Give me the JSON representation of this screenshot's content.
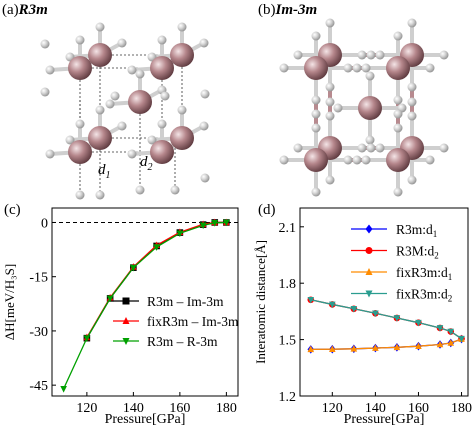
{
  "panels": {
    "a": {
      "letter": "(a)",
      "phase": "R3m",
      "d1": "d",
      "d1_sub": "1",
      "d2": "d",
      "d2_sub": "2"
    },
    "b": {
      "letter": "(b)",
      "phase": "Im-3m"
    },
    "c": {
      "letter": "(c)"
    },
    "d": {
      "letter": "(d)"
    }
  },
  "colors": {
    "sulfur": "#b5868b",
    "hydrogen": "#d4d4d4",
    "bond_s": "#b78a8f",
    "bond_h": "#cfcfcf"
  },
  "chart_data": [
    {
      "id": "c",
      "type": "line",
      "xlabel": "Pressure[GPa]",
      "ylabel": "ΔH[meV/H₃S]",
      "xlim": [
        105,
        185
      ],
      "ylim": [
        -48,
        4
      ],
      "xticks": [
        120,
        140,
        160,
        180
      ],
      "yticks": [
        0,
        -15,
        -30,
        -45
      ],
      "reference_line": 0,
      "legend_position": "bottom-right",
      "series": [
        {
          "name": "R3m – Im-3m",
          "color": "#000000",
          "marker": "square",
          "x": [
            120,
            130,
            140,
            150,
            160,
            170,
            175,
            180
          ],
          "y": [
            -32,
            -21,
            -12.5,
            -6.5,
            -2.8,
            -0.6,
            0,
            0
          ]
        },
        {
          "name": "fixR3m – Im-3m",
          "color": "#ff0000",
          "marker": "triangle-up",
          "x": [
            120,
            130,
            140,
            150,
            160,
            170,
            175,
            180
          ],
          "y": [
            -31.8,
            -20.8,
            -12.3,
            -6.3,
            -2.7,
            -0.5,
            0,
            0
          ]
        },
        {
          "name": "R3m – R-3m",
          "color": "#00a000",
          "marker": "triangle-down",
          "x": [
            110,
            120,
            130,
            140,
            150,
            160,
            170,
            175,
            180
          ],
          "y": [
            -46,
            -32,
            -21,
            -12.5,
            -6.8,
            -3,
            -0.8,
            -0.1,
            0
          ]
        }
      ]
    },
    {
      "id": "d",
      "type": "line",
      "xlabel": "Pressure[GPa]",
      "ylabel": "Interatomic distance[Å]",
      "xlim": [
        105,
        183
      ],
      "ylim": [
        1.2,
        2.2
      ],
      "xticks": [
        120,
        140,
        160,
        180
      ],
      "yticks": [
        1.2,
        1.5,
        1.8,
        2.1
      ],
      "legend_position": "top-right",
      "series": [
        {
          "name": "R3m:d",
          "sub": "1",
          "color": "#0000ff",
          "marker": "diamond",
          "x": [
            110,
            120,
            130,
            140,
            150,
            160,
            170,
            175,
            180
          ],
          "y": [
            1.448,
            1.449,
            1.451,
            1.455,
            1.459,
            1.465,
            1.474,
            1.482,
            1.503
          ]
        },
        {
          "name": "R3M:d",
          "sub": "2",
          "color": "#ff0000",
          "marker": "circle",
          "x": [
            110,
            120,
            130,
            140,
            150,
            160,
            170,
            175,
            180
          ],
          "y": [
            1.712,
            1.687,
            1.664,
            1.64,
            1.615,
            1.59,
            1.562,
            1.543,
            1.505
          ]
        },
        {
          "name": "fixR3m:d",
          "sub": "1",
          "color": "#ff8c00",
          "marker": "triangle-up",
          "x": [
            110,
            120,
            130,
            140,
            150,
            160,
            170,
            175,
            180
          ],
          "y": [
            1.448,
            1.449,
            1.451,
            1.455,
            1.459,
            1.465,
            1.474,
            1.482,
            1.503
          ]
        },
        {
          "name": "fixR3m:d",
          "sub": "2",
          "color": "#2a9d8f",
          "marker": "triangle-down",
          "x": [
            110,
            120,
            130,
            140,
            150,
            160,
            170,
            175,
            180
          ],
          "y": [
            1.712,
            1.687,
            1.664,
            1.64,
            1.615,
            1.59,
            1.562,
            1.543,
            1.505
          ]
        }
      ]
    }
  ]
}
